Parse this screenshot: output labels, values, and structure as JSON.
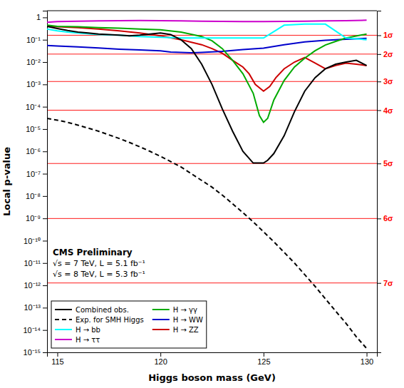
{
  "chart_data": {
    "type": "line",
    "xlabel": "Higgs boson mass (GeV)",
    "ylabel": "Local p-value",
    "log": "y",
    "xlim": [
      114.5,
      130.5
    ],
    "xticks": [
      115,
      120,
      125,
      130
    ],
    "ylim": [
      1e-15,
      2.0
    ],
    "yticks": [
      {
        "value": 1e-15,
        "label": "10⁻¹⁵"
      },
      {
        "value": 1e-14,
        "label": "10⁻¹⁴"
      },
      {
        "value": 1e-13,
        "label": "10⁻¹³"
      },
      {
        "value": 1e-12,
        "label": "10⁻¹²"
      },
      {
        "value": 1e-11,
        "label": "10⁻¹¹"
      },
      {
        "value": 1e-10,
        "label": "10⁻¹⁰"
      },
      {
        "value": 1e-09,
        "label": "10⁻⁹"
      },
      {
        "value": 1e-08,
        "label": "10⁻⁸"
      },
      {
        "value": 1e-07,
        "label": "10⁻⁷"
      },
      {
        "value": 1e-06,
        "label": "10⁻⁶"
      },
      {
        "value": 1e-05,
        "label": "10⁻⁵"
      },
      {
        "value": 0.0001,
        "label": "10⁻⁴"
      },
      {
        "value": 0.001,
        "label": "10⁻³"
      },
      {
        "value": 0.01,
        "label": "10⁻²"
      },
      {
        "value": 0.1,
        "label": "10⁻¹"
      },
      1
    ],
    "y2lim": [
      1e-15,
      2.0
    ],
    "y2ticks": [
      {
        "value": 0.1587,
        "label": "1σ"
      },
      {
        "value": 0.0228,
        "label": "2σ"
      },
      {
        "value": 0.00135,
        "label": "3σ"
      },
      {
        "value": 7e-05,
        "label": "4σ"
      },
      {
        "value": 2.87e-07,
        "label": "5σ"
      },
      {
        "value": 9.87e-10,
        "label": "6σ"
      },
      {
        "value": 1.28e-12,
        "label": "7σ"
      }
    ],
    "grid": "y2",
    "legend": "lower left",
    "annotations": [
      "CMS Preliminary",
      "√s = 7 TeV, L = 5.1 fb⁻¹",
      "√s = 8 TeV, L = 5.3 fb⁻¹"
    ],
    "series": [
      {
        "name": "Combined obs.",
        "color": "#000000",
        "line_style": "solid",
        "x": [
          114.5,
          115.0,
          115.5,
          116.0,
          116.5,
          117.0,
          117.5,
          118.0,
          118.5,
          119.0,
          119.5,
          120.0,
          120.5,
          121.0,
          121.5,
          122.0,
          122.5,
          123.0,
          123.5,
          124.0,
          124.5,
          124.8,
          125.0,
          125.2,
          125.5,
          126.0,
          126.5,
          127.0,
          127.5,
          128.0,
          128.5,
          129.0,
          129.5,
          130.0
        ],
        "values": [
          0.4,
          0.32,
          0.26,
          0.22,
          0.2,
          0.18,
          0.17,
          0.16,
          0.15,
          0.16,
          0.18,
          0.2,
          0.17,
          0.1,
          0.04,
          0.008,
          0.001,
          8e-05,
          8e-06,
          1e-06,
          3e-07,
          3e-07,
          3e-07,
          4e-07,
          8e-07,
          5e-06,
          6e-05,
          0.0005,
          0.002,
          0.005,
          0.008,
          0.01,
          0.012,
          0.007
        ]
      },
      {
        "name": "Exp. for SMH Higgs",
        "color": "#000000",
        "line_style": "dashed",
        "x": [
          114.5,
          115.0,
          115.5,
          116.0,
          116.5,
          117.0,
          117.5,
          118.0,
          118.5,
          119.0,
          119.5,
          120.0,
          120.5,
          121.0,
          121.5,
          122.0,
          122.5,
          123.0,
          123.5,
          124.0,
          124.5,
          125.0,
          125.5,
          126.0,
          126.5,
          127.0,
          127.5,
          128.0,
          128.5,
          129.0,
          129.5,
          130.0
        ],
        "values": [
          3e-05,
          2.5e-05,
          2e-05,
          1.5e-05,
          1.1e-05,
          8e-06,
          5.5e-06,
          3.8e-06,
          2.5e-06,
          1.6e-06,
          1e-06,
          6e-07,
          3.5e-07,
          2e-07,
          1e-07,
          5e-08,
          2.5e-08,
          1.1e-08,
          4.5e-09,
          1.8e-09,
          7e-10,
          2.5e-10,
          9e-11,
          3e-11,
          1e-11,
          3e-12,
          9e-13,
          2.5e-13,
          7e-14,
          2e-14,
          5e-15,
          1.5e-15
        ]
      },
      {
        "name": "H → bb",
        "color": "cyan",
        "line_style": "solid",
        "x": [
          114.5,
          115.0,
          115.5,
          116.0,
          117.0,
          118.0,
          119.0,
          120.0,
          121.0,
          122.0,
          123.0,
          124.0,
          125.0,
          126.0,
          127.0,
          128.0,
          129.0,
          130.0
        ],
        "values": [
          0.3,
          0.25,
          0.22,
          0.2,
          0.17,
          0.16,
          0.14,
          0.13,
          0.12,
          0.12,
          0.12,
          0.12,
          0.12,
          0.45,
          0.5,
          0.5,
          0.12,
          0.1
        ]
      },
      {
        "name": "H → ττ",
        "color": "#cc00cc",
        "line_style": "solid",
        "x": [
          114.5,
          115.0,
          116.0,
          117.0,
          118.0,
          119.0,
          120.0,
          121.0,
          122.0,
          123.0,
          124.0,
          125.0,
          126.0,
          127.0,
          128.0,
          129.0,
          130.0
        ],
        "values": [
          0.6,
          0.65,
          0.68,
          0.7,
          0.72,
          0.73,
          0.72,
          0.7,
          0.68,
          0.66,
          0.65,
          0.65,
          0.66,
          0.68,
          0.7,
          0.72,
          0.75
        ]
      },
      {
        "name": "H → γγ",
        "color": "#00aa00",
        "line_style": "solid",
        "x": [
          114.5,
          115.0,
          116.0,
          117.0,
          118.0,
          119.0,
          120.0,
          121.0,
          122.0,
          122.5,
          123.0,
          123.5,
          124.0,
          124.5,
          124.8,
          125.0,
          125.2,
          125.5,
          126.0,
          126.5,
          127.0,
          127.5,
          128.0,
          128.5,
          129.0,
          130.0
        ],
        "values": [
          0.45,
          0.4,
          0.38,
          0.35,
          0.33,
          0.3,
          0.28,
          0.22,
          0.14,
          0.09,
          0.04,
          0.012,
          0.003,
          0.0004,
          4e-05,
          2e-05,
          3e-05,
          0.0002,
          0.0015,
          0.006,
          0.015,
          0.032,
          0.058,
          0.085,
          0.12,
          0.18
        ]
      },
      {
        "name": "H → WW",
        "color": "#0000cc",
        "line_style": "solid",
        "x": [
          114.5,
          115.0,
          116.0,
          117.0,
          118.0,
          119.0,
          120.0,
          120.5,
          121.0,
          121.5,
          122.0,
          123.0,
          124.0,
          125.0,
          126.0,
          127.0,
          128.0,
          129.0,
          130.0
        ],
        "values": [
          0.055,
          0.052,
          0.048,
          0.043,
          0.038,
          0.035,
          0.032,
          0.028,
          0.027,
          0.026,
          0.027,
          0.03,
          0.036,
          0.042,
          0.06,
          0.08,
          0.095,
          0.105,
          0.115
        ]
      },
      {
        "name": "H → ZZ",
        "color": "#cc0000",
        "line_style": "solid",
        "x": [
          114.5,
          115.0,
          116.0,
          117.0,
          118.0,
          119.0,
          120.0,
          121.0,
          122.0,
          122.5,
          123.0,
          123.5,
          124.0,
          124.3,
          124.6,
          125.0,
          125.3,
          125.6,
          126.0,
          126.5,
          127.0,
          127.5,
          128.0,
          128.5,
          129.0,
          129.5,
          130.0
        ],
        "values": [
          0.4,
          0.38,
          0.35,
          0.3,
          0.25,
          0.2,
          0.15,
          0.1,
          0.06,
          0.04,
          0.025,
          0.012,
          0.006,
          0.003,
          0.001,
          0.0005,
          0.0008,
          0.002,
          0.005,
          0.01,
          0.016,
          0.009,
          0.005,
          0.007,
          0.009,
          0.008,
          0.007
        ]
      }
    ]
  }
}
